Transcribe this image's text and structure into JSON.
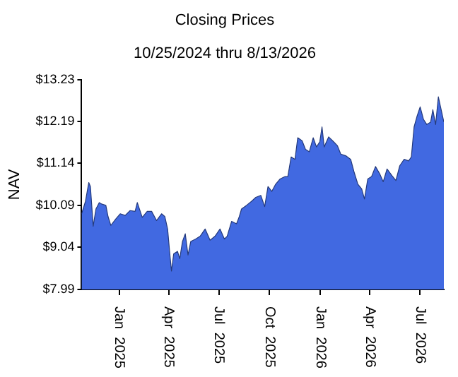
{
  "chart_data": {
    "type": "area",
    "title": "Closing Prices",
    "subtitle": "10/25/2024 thru 8/13/2026",
    "ylabel": "NAV",
    "x": [
      "2024-10-25",
      "2024-11-01",
      "2024-11-07",
      "2024-11-10",
      "2024-11-15",
      "2024-11-20",
      "2024-11-26",
      "2024-12-01",
      "2024-12-08",
      "2024-12-12",
      "2024-12-17",
      "2024-12-26",
      "2025-01-03",
      "2025-01-12",
      "2025-01-21",
      "2025-01-30",
      "2025-02-03",
      "2025-02-12",
      "2025-02-21",
      "2025-03-01",
      "2025-03-10",
      "2025-03-19",
      "2025-03-25",
      "2025-03-30",
      "2025-04-03",
      "2025-04-06",
      "2025-04-10",
      "2025-04-17",
      "2025-04-21",
      "2025-04-26",
      "2025-05-01",
      "2025-05-06",
      "2025-05-11",
      "2025-05-20",
      "2025-05-28",
      "2025-06-06",
      "2025-06-15",
      "2025-06-24",
      "2025-07-03",
      "2025-07-11",
      "2025-07-16",
      "2025-07-24",
      "2025-08-02",
      "2025-08-07",
      "2025-08-11",
      "2025-08-20",
      "2025-08-29",
      "2025-09-06",
      "2025-09-15",
      "2025-09-22",
      "2025-09-28",
      "2025-10-05",
      "2025-10-12",
      "2025-10-20",
      "2025-10-29",
      "2025-11-03",
      "2025-11-09",
      "2025-11-16",
      "2025-11-21",
      "2025-11-29",
      "2025-12-05",
      "2025-12-12",
      "2025-12-19",
      "2025-12-25",
      "2025-12-31",
      "2026-01-04",
      "2026-01-08",
      "2026-01-16",
      "2026-01-25",
      "2026-02-01",
      "2026-02-07",
      "2026-02-16",
      "2026-02-25",
      "2026-03-03",
      "2026-03-10",
      "2026-03-17",
      "2026-03-22",
      "2026-03-28",
      "2026-04-04",
      "2026-04-11",
      "2026-04-19",
      "2026-04-25",
      "2026-05-02",
      "2026-05-11",
      "2026-05-18",
      "2026-05-25",
      "2026-06-02",
      "2026-06-10",
      "2026-06-15",
      "2026-06-20",
      "2026-06-25",
      "2026-07-01",
      "2026-07-07",
      "2026-07-13",
      "2026-07-20",
      "2026-07-24",
      "2026-07-29",
      "2026-08-03",
      "2026-08-13"
    ],
    "series": [
      {
        "color": "#4169e1",
        "values": [
          9.88,
          10.19,
          10.66,
          10.56,
          9.57,
          10.0,
          10.16,
          10.12,
          10.09,
          9.81,
          9.59,
          9.75,
          9.88,
          9.84,
          9.96,
          9.94,
          10.16,
          9.79,
          9.94,
          9.94,
          9.71,
          9.88,
          9.81,
          9.5,
          8.88,
          8.45,
          8.88,
          8.94,
          8.76,
          9.19,
          9.38,
          8.85,
          9.19,
          9.25,
          9.32,
          9.5,
          9.22,
          9.32,
          9.5,
          9.25,
          9.32,
          9.69,
          9.63,
          9.81,
          10.0,
          10.09,
          10.19,
          10.29,
          10.34,
          10.06,
          10.56,
          10.44,
          10.62,
          10.75,
          10.81,
          10.81,
          11.3,
          11.24,
          11.78,
          11.7,
          11.49,
          11.43,
          11.78,
          11.55,
          11.68,
          12.05,
          11.55,
          11.8,
          11.68,
          11.58,
          11.37,
          11.33,
          11.24,
          10.93,
          10.62,
          10.5,
          10.25,
          10.75,
          10.81,
          11.06,
          10.87,
          10.68,
          11.0,
          10.83,
          10.71,
          11.08,
          11.24,
          11.2,
          11.3,
          12.05,
          12.3,
          12.55,
          12.24,
          12.11,
          12.17,
          12.48,
          12.11,
          12.8,
          12.17
        ]
      }
    ],
    "xlim": [
      "2024-10-25",
      "2026-08-13"
    ],
    "xticks": [
      {
        "value": "2025-01-01",
        "label": "Jan  2025"
      },
      {
        "value": "2025-04-01",
        "label": "Apr  2025"
      },
      {
        "value": "2025-07-01",
        "label": "Jul  2025"
      },
      {
        "value": "2025-10-01",
        "label": "Oct  2025"
      },
      {
        "value": "2026-01-01",
        "label": "Jan  2026"
      },
      {
        "value": "2026-04-01",
        "label": "Apr  2026"
      },
      {
        "value": "2026-07-01",
        "label": "Jul  2026"
      }
    ],
    "ylim": [
      7.99,
      13.23
    ],
    "yticks": [
      {
        "value": 7.99,
        "label": "$7.99"
      },
      {
        "value": 9.04,
        "label": "$9.04"
      },
      {
        "value": 10.09,
        "label": "$10.09"
      },
      {
        "value": 11.14,
        "label": "$11.14"
      },
      {
        "value": 12.19,
        "label": "$12.19"
      },
      {
        "value": 13.23,
        "label": "$13.23"
      }
    ],
    "grid": false,
    "legend": false
  }
}
